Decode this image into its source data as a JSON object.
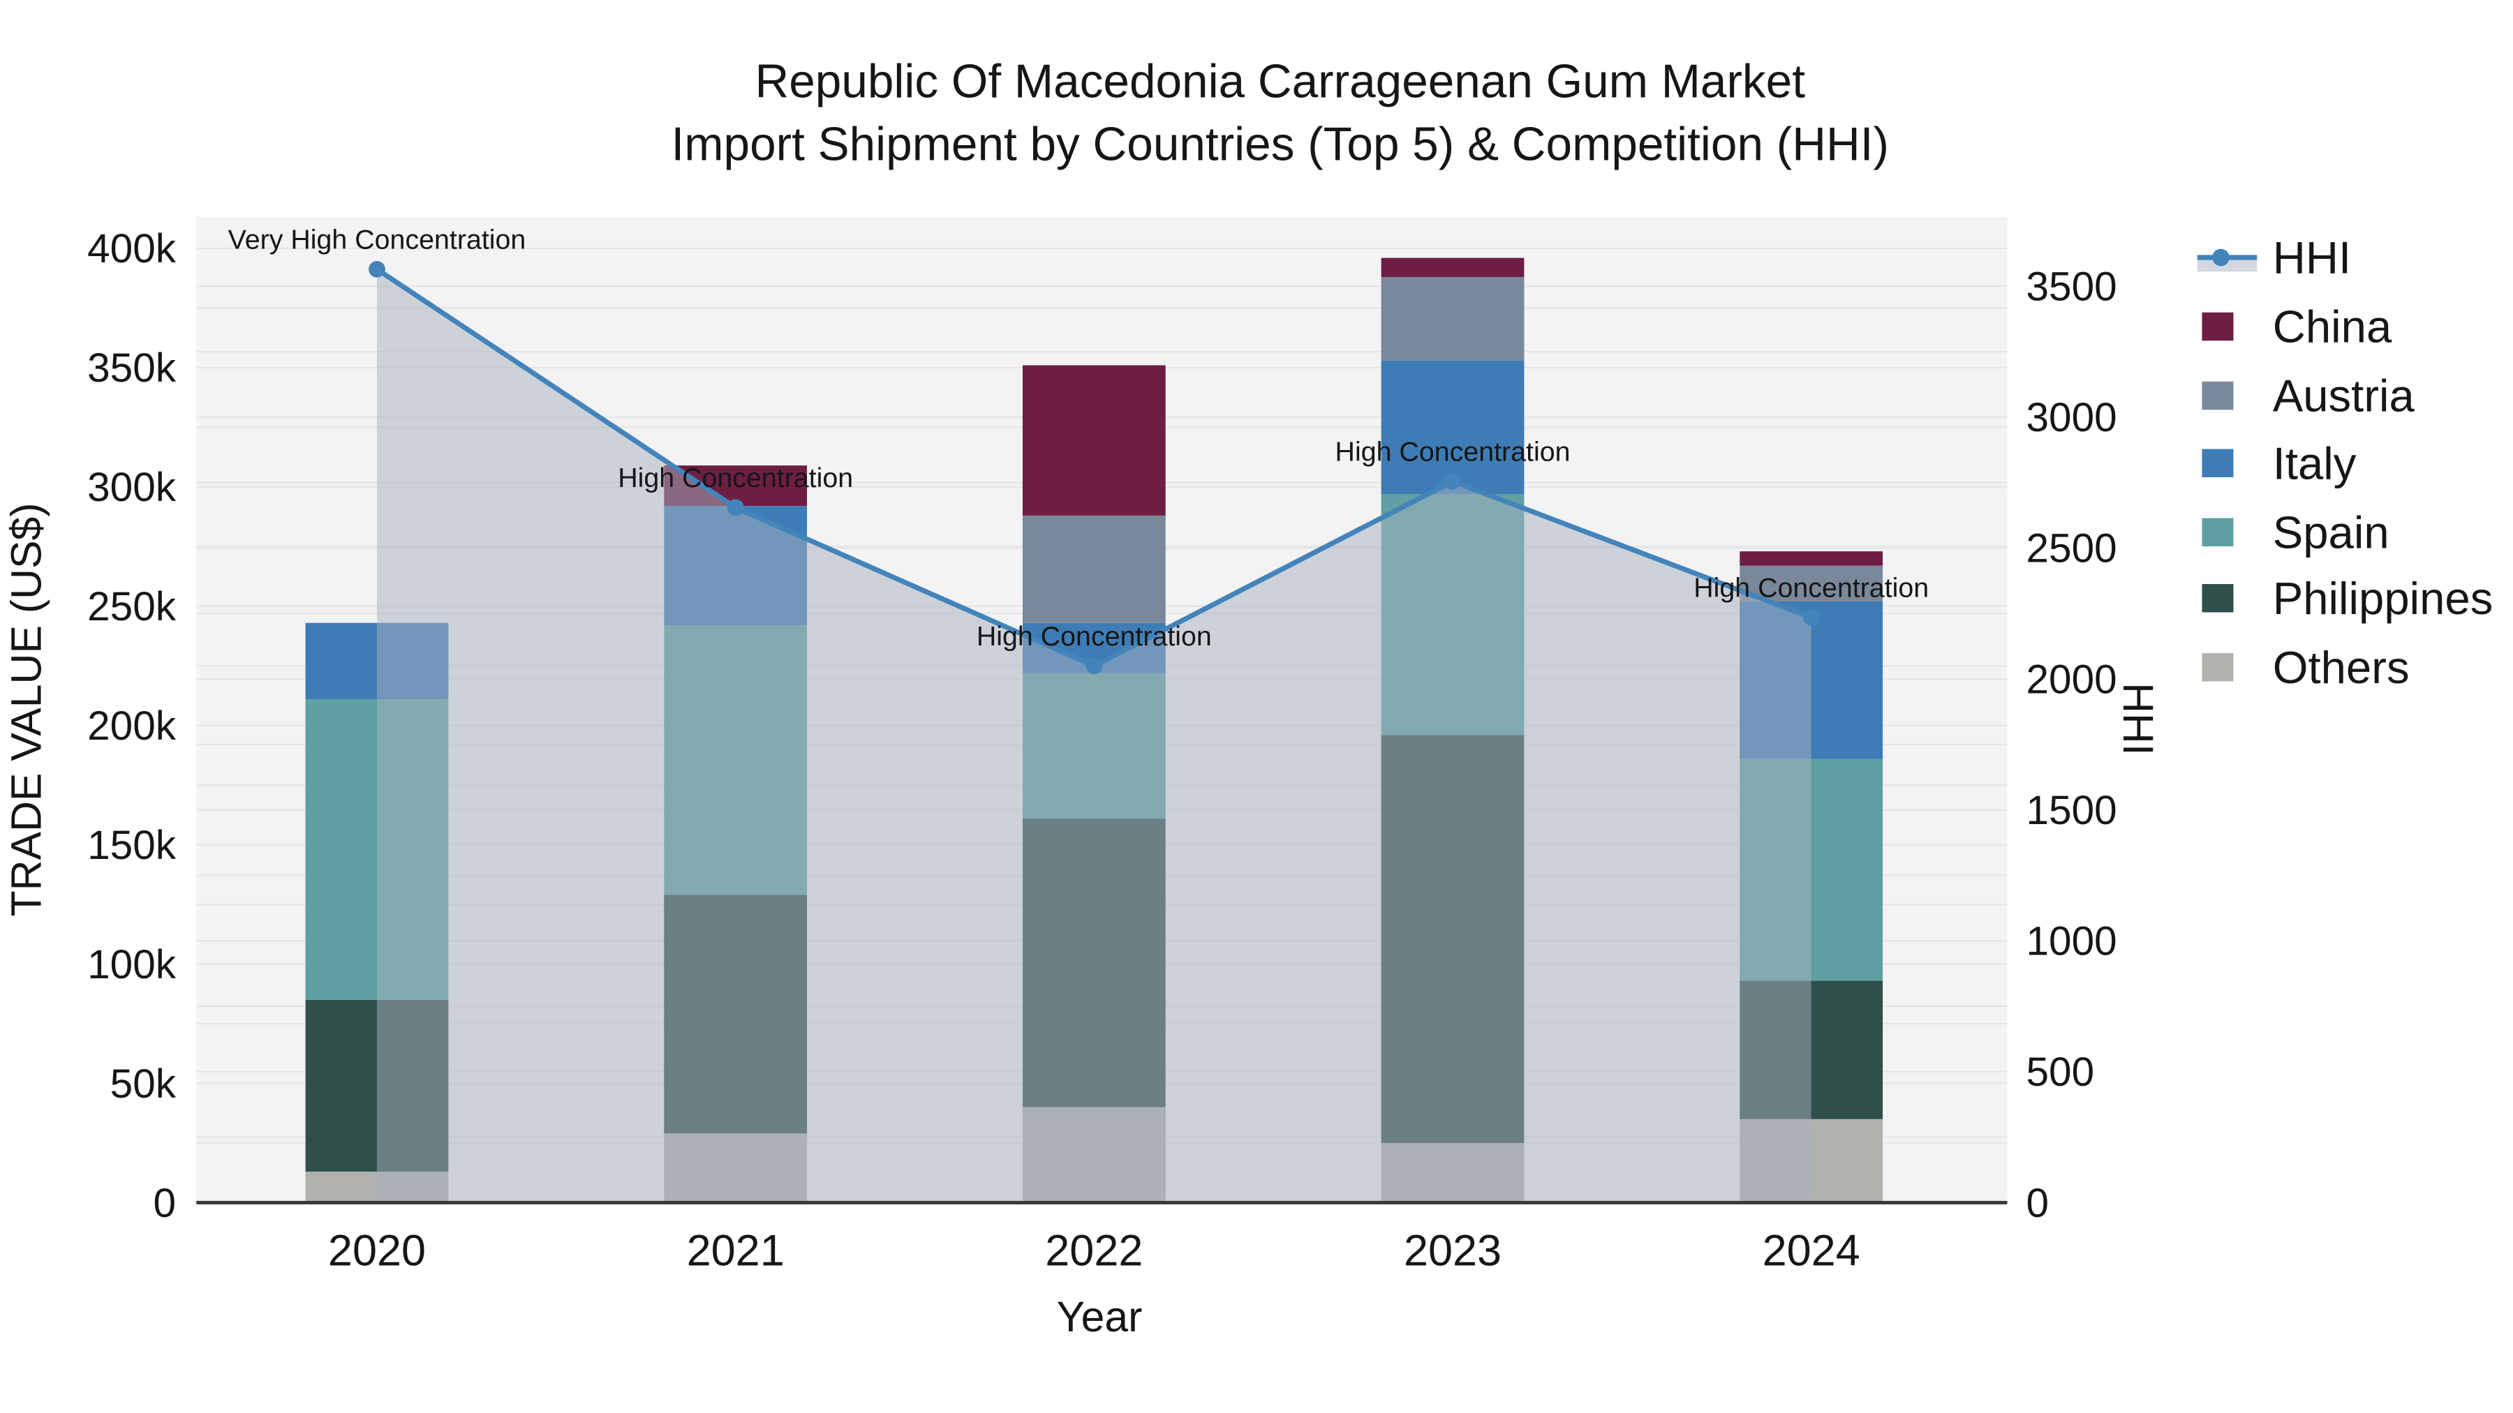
{
  "title": {
    "line1": "Republic Of Macedonia Carrageenan Gum Market",
    "line2": "Import Shipment by Countries (Top 5) & Competition (HHI)"
  },
  "axes": {
    "x_title": "Year",
    "y_left_title": "TRADE VALUE (US$)",
    "y_right_title": "HHI",
    "x_ticks": [
      "2020",
      "2021",
      "2022",
      "2023",
      "2024"
    ],
    "y_left_ticks": [
      "0",
      "50k",
      "100k",
      "150k",
      "200k",
      "250k",
      "300k",
      "350k",
      "400k"
    ],
    "y_right_ticks": [
      "0",
      "500",
      "1000",
      "1500",
      "2000",
      "2500",
      "3000",
      "3500"
    ]
  },
  "legend": {
    "items": [
      {
        "label": "HHI",
        "type": "line",
        "color": "#4384bb"
      },
      {
        "label": "China",
        "type": "swatch",
        "color": "#6d1e42"
      },
      {
        "label": "Austria",
        "type": "swatch",
        "color": "#7a889b"
      },
      {
        "label": "Italy",
        "type": "swatch",
        "color": "#3e7cb5"
      },
      {
        "label": "Spain",
        "type": "swatch",
        "color": "#5fa0a2"
      },
      {
        "label": "Philippines",
        "type": "swatch",
        "color": "#2f4f4a"
      },
      {
        "label": "Others",
        "type": "swatch",
        "color": "#b1b1ae"
      }
    ]
  },
  "colors": {
    "plot_background": "#f3f3f3",
    "gridline": "#e6e6e6",
    "axis_line": "#3b3b3b",
    "hhi_line": "#4384bb",
    "hhi_area_fill": "rgba(168,178,192,0.5)",
    "text": "#161616"
  },
  "chart_data": {
    "type": "bar+line",
    "title": "Republic Of Macedonia Carrageenan Gum Market — Import Shipment by Countries (Top 5) & Competition (HHI)",
    "categories": [
      "2020",
      "2021",
      "2022",
      "2023",
      "2024"
    ],
    "xlabel": "Year",
    "ylabel_left": "TRADE VALUE (US$)",
    "ylabel_right": "HHI",
    "y_left_range": [
      0,
      413000
    ],
    "y_right_range": [
      0,
      3766
    ],
    "grid": true,
    "legend_position": "right",
    "bar_stack_order_bottom_to_top": [
      "Others",
      "Philippines",
      "Spain",
      "Italy",
      "Austria",
      "China"
    ],
    "series": [
      {
        "name": "Others",
        "color": "#b1b1ae",
        "values": [
          13000,
          29000,
          40000,
          25000,
          35000
        ]
      },
      {
        "name": "Philippines",
        "color": "#2f4f4a",
        "values": [
          72000,
          100000,
          121000,
          171000,
          58000
        ]
      },
      {
        "name": "Spain",
        "color": "#5fa0a2",
        "values": [
          126000,
          113000,
          61000,
          101000,
          93000
        ]
      },
      {
        "name": "Italy",
        "color": "#3e7cb5",
        "values": [
          32000,
          50000,
          21000,
          56000,
          66000
        ]
      },
      {
        "name": "Austria",
        "color": "#7a889b",
        "values": [
          0,
          0,
          45000,
          35000,
          15000
        ]
      },
      {
        "name": "China",
        "color": "#6d1e42",
        "values": [
          0,
          17000,
          63000,
          8000,
          6000
        ]
      }
    ],
    "bar_totals": [
      243000,
      309000,
      351000,
      396000,
      273000
    ],
    "line_series": {
      "name": "HHI",
      "color": "#4384bb",
      "area_fill": "rgba(168,178,192,0.5)",
      "values": [
        3565,
        2655,
        2050,
        2755,
        2235
      ]
    },
    "annotations": [
      {
        "category": "2020",
        "text": "Very High Concentration"
      },
      {
        "category": "2021",
        "text": "High Concentration"
      },
      {
        "category": "2022",
        "text": "High Concentration"
      },
      {
        "category": "2023",
        "text": "High Concentration"
      },
      {
        "category": "2024",
        "text": "High Concentration"
      }
    ]
  }
}
